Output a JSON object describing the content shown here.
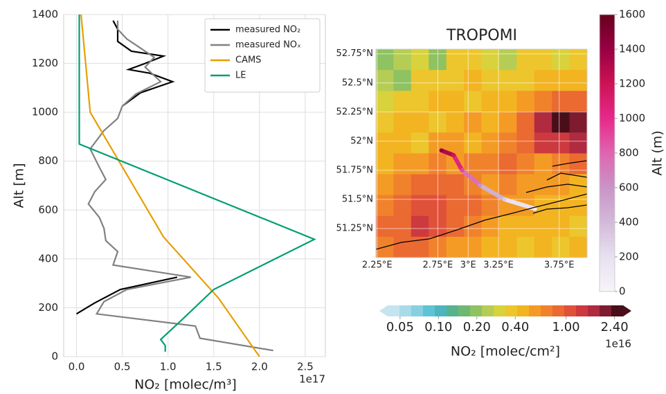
{
  "chart_data": [
    {
      "type": "line",
      "xlabel": "NO₂ [molec/m³]",
      "ylabel": "Alt [m]",
      "x_offset": "1e17",
      "xlim": [
        -0.14,
        2.72
      ],
      "ylim": [
        0,
        1400
      ],
      "xticks": [
        {
          "value": 0,
          "label": "0.0"
        },
        0.5,
        {
          "value": 1,
          "label": "1.0"
        },
        1.5,
        {
          "value": 2,
          "label": "2.0"
        },
        2.5
      ],
      "yticks": [
        0,
        200,
        400,
        600,
        800,
        1000,
        1200,
        1400
      ],
      "grid": true,
      "legend": "upper right",
      "series": [
        {
          "name": "measured NO₂",
          "color": "#000000",
          "x": [
            0.0,
            0.2,
            0.48,
            1.1,
            null,
            0.5,
            0.7,
            1.05,
            0.8,
            0.57,
            0.75,
            0.95,
            0.6,
            0.45,
            0.45,
            0.4
          ],
          "y": [
            175,
            220,
            275,
            325,
            null,
            1025,
            1080,
            1125,
            1160,
            1175,
            1200,
            1230,
            1250,
            1290,
            1340,
            1375
          ]
        },
        {
          "name": "measured NOₓ",
          "color": "#808080",
          "x": [
            2.15,
            1.35,
            1.3,
            0.22,
            0.3,
            0.55,
            1.25,
            0.4,
            0.45,
            0.32,
            0.3,
            0.25,
            0.13,
            0.2,
            0.32,
            0.25,
            0.15,
            0.3,
            0.45,
            0.5,
            0.65,
            0.92,
            0.75,
            0.85,
            0.65,
            0.55,
            0.45,
            0.45
          ],
          "y": [
            25,
            75,
            125,
            175,
            225,
            275,
            325,
            375,
            430,
            475,
            525,
            570,
            625,
            675,
            725,
            775,
            850,
            925,
            975,
            1025,
            1075,
            1125,
            1185,
            1225,
            1275,
            1300,
            1340,
            1375
          ]
        },
        {
          "name": "CAMS",
          "color": "#e69f00",
          "x": [
            2.0,
            1.55,
            0.95,
            0.15,
            0.05
          ],
          "y": [
            0,
            240,
            490,
            1000,
            1400
          ]
        },
        {
          "name": "LE",
          "color": "#009e73",
          "x": [
            0.97,
            0.97,
            0.92,
            1.15,
            1.5,
            2.6,
            0.03,
            0.03
          ],
          "y": [
            20,
            45,
            70,
            150,
            275,
            480,
            870,
            1400
          ]
        }
      ]
    },
    {
      "type": "heatmap",
      "title": "TROPOMI",
      "lonlim": [
        2.24,
        3.98
      ],
      "latlim": [
        51.0,
        52.79
      ],
      "grid": true,
      "lonticks": [
        {
          "value": 2.25,
          "label": "2.25°E"
        },
        {
          "value": 2.75,
          "label": "2.75°E"
        },
        {
          "value": 3,
          "label": "3°E"
        },
        {
          "value": 3.25,
          "label": "3.25°E"
        },
        {
          "value": 3.75,
          "label": "3.75°E"
        }
      ],
      "latticks": [
        {
          "value": 51.25,
          "label": "51.25°N"
        },
        {
          "value": 51.5,
          "label": "51.5°N"
        },
        {
          "value": 51.75,
          "label": "51.75°N"
        },
        {
          "value": 52,
          "label": "52°N"
        },
        {
          "value": 52.25,
          "label": "52.25°N"
        },
        {
          "value": 52.5,
          "label": "52.5°N"
        },
        {
          "value": 52.75,
          "label": "52.75°N"
        }
      ],
      "grid_values": [
        [
          0.2,
          0.25,
          0.3,
          0.2,
          0.35,
          0.4,
          0.3,
          0.25,
          0.35,
          0.4,
          0.3,
          0.35
        ],
        [
          0.25,
          0.2,
          0.35,
          0.4,
          0.4,
          0.45,
          0.4,
          0.35,
          0.4,
          0.5,
          0.45,
          0.5
        ],
        [
          0.3,
          0.4,
          0.35,
          0.45,
          0.5,
          0.4,
          0.45,
          0.5,
          0.6,
          0.7,
          0.8,
          0.9
        ],
        [
          0.4,
          0.45,
          0.5,
          0.4,
          0.5,
          0.55,
          0.5,
          0.6,
          0.8,
          1.6,
          2.4,
          2.0
        ],
        [
          0.45,
          0.5,
          0.4,
          0.55,
          0.6,
          0.5,
          0.6,
          0.7,
          0.9,
          1.2,
          1.4,
          1.7
        ],
        [
          0.5,
          0.55,
          0.6,
          0.7,
          0.6,
          0.65,
          0.7,
          0.8,
          0.7,
          0.6,
          0.7,
          0.8
        ],
        [
          0.6,
          0.7,
          0.8,
          0.9,
          0.8,
          0.7,
          0.6,
          0.65,
          0.6,
          0.55,
          0.6,
          0.5
        ],
        [
          0.7,
          0.8,
          1.0,
          1.1,
          0.9,
          0.8,
          0.7,
          0.6,
          0.55,
          0.5,
          0.5,
          0.45
        ],
        [
          0.8,
          0.9,
          1.2,
          1.0,
          0.9,
          0.7,
          0.6,
          0.5,
          0.45,
          0.5,
          0.45,
          0.4
        ],
        [
          0.7,
          0.9,
          0.8,
          0.7,
          0.6,
          0.55,
          0.5,
          0.45,
          0.4,
          0.45,
          0.4,
          0.45
        ]
      ],
      "colorbar": {
        "label": "NO₂ [molec/cm²]",
        "offset": "1e16",
        "lim": [
          0.04,
          2.8
        ],
        "log": true,
        "ticks": [
          0.05,
          {
            "value": 0.1,
            "label": "0.10"
          },
          {
            "value": 0.2,
            "label": "0.20"
          },
          {
            "value": 0.4,
            "label": "0.40"
          },
          {
            "value": 1,
            "label": "1.00"
          },
          {
            "value": 2.4,
            "label": "2.40"
          }
        ],
        "colors": [
          "#c6e4ef",
          "#a8dbe8",
          "#86d0e0",
          "#5fc3d6",
          "#4db5bf",
          "#55b38f",
          "#6fb873",
          "#8fc261",
          "#b6cd55",
          "#d8d23d",
          "#ecc62c",
          "#f3b421",
          "#f49b25",
          "#f1822c",
          "#ea6a32",
          "#e0513a",
          "#cc3a3f",
          "#b02a40",
          "#7e1b2f",
          "#4a0e1a"
        ]
      },
      "track": {
        "lon": [
          2.78,
          2.88,
          2.95,
          3.1,
          3.3,
          3.55
        ],
        "lat": [
          51.92,
          51.88,
          51.75,
          51.62,
          51.5,
          51.42
        ],
        "alt": [
          1400,
          1200,
          900,
          600,
          300,
          50
        ]
      },
      "alt_colorbar": {
        "label": "Alt (m)",
        "lim": [
          0,
          1600
        ],
        "ticks": [
          0,
          200,
          400,
          600,
          800,
          1000,
          1200,
          1400,
          1600
        ],
        "colors": [
          "#f7f4f9",
          "#e7e1ef",
          "#d4b9da",
          "#c994c7",
          "#df65b0",
          "#e7298a",
          "#ce1256",
          "#980043",
          "#67001f"
        ]
      }
    }
  ]
}
